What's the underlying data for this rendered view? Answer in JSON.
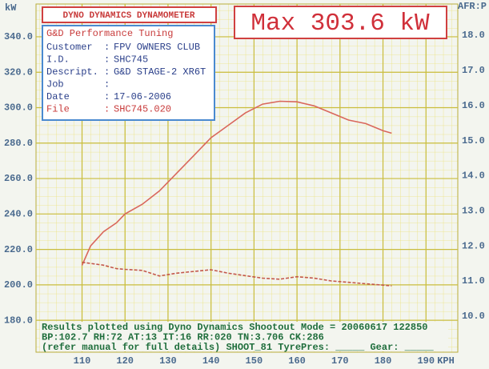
{
  "chart_data": {
    "type": "line",
    "title": "DYNO DYNAMICS DYNAMOMETER",
    "annotation": "Max 303.6 kW",
    "ylabel": "kW",
    "y2label": "AFR:P",
    "xlabel": "KPH",
    "info": {
      "heading": "G&D Performance Tuning",
      "separator": ":",
      "rows": [
        {
          "label": "Customer",
          "value": "FPV OWNERS CLUB"
        },
        {
          "label": "I.D.",
          "value": "SHC745"
        },
        {
          "label": "Descript.",
          "value": "G&D STAGE-2 XR6T"
        },
        {
          "label": "Job"
        },
        {
          "label": "Date",
          "value": "17-06-2006"
        },
        {
          "label": "File",
          "value": "SHC745.020"
        }
      ]
    },
    "footer": [
      "Results plotted using Dyno Dynamics Shootout Mode = 20060617 122850",
      "BP:102.7 RH:72 AT:13 IT:16  RR:020 TN:3.706 CK:286",
      "(refer manual for full details) SHOOT_81 TyrePres: _____ Gear: _____"
    ],
    "x": [
      110,
      112,
      115,
      118,
      120,
      124,
      128,
      132,
      136,
      140,
      144,
      148,
      152,
      156,
      160,
      164,
      168,
      172,
      176,
      180,
      182
    ],
    "series": [
      {
        "color": "#d9675c",
        "values": [
          211,
          222,
          230,
          235,
          240,
          245.5,
          253,
          263,
          273,
          283,
          290,
          297,
          302,
          303.6,
          303.3,
          301,
          297,
          293,
          291,
          287,
          285.6
        ]
      },
      {
        "color": "#c4584a",
        "axis": "y2",
        "dashed": true,
        "values": [
          11.53,
          11.5,
          11.45,
          11.35,
          11.33,
          11.3,
          11.14,
          11.22,
          11.27,
          11.32,
          11.22,
          11.15,
          11.08,
          11.05,
          11.12,
          11.08,
          11.0,
          10.96,
          10.92,
          10.88,
          10.86
        ]
      }
    ],
    "xlim": [
      99.3,
      197.4
    ],
    "xticks": [
      110,
      120,
      130,
      140,
      150,
      160,
      170,
      180,
      190
    ],
    "ylim": [
      162,
      358.5
    ],
    "yticks": [
      {
        "value": 180,
        "label": "180.0"
      },
      {
        "value": 200,
        "label": "200.0"
      },
      {
        "value": 220,
        "label": "220.0"
      },
      {
        "value": 240,
        "label": "240.0"
      },
      {
        "value": 260,
        "label": "260.0"
      },
      {
        "value": 280,
        "label": "280.0"
      },
      {
        "value": 300,
        "label": "300.0"
      },
      {
        "value": 320,
        "label": "320.0"
      },
      {
        "value": 340,
        "label": "340.0"
      }
    ],
    "y2lim": [
      8.97,
      18.89
    ],
    "y2ticks": [
      {
        "value": 10,
        "label": "10.0"
      },
      {
        "value": 11,
        "label": "11.0"
      },
      {
        "value": 12,
        "label": "12.0"
      },
      {
        "value": 13,
        "label": "13.0"
      },
      {
        "value": 14,
        "label": "14.0"
      },
      {
        "value": 15,
        "label": "15.0"
      },
      {
        "value": 16,
        "label": "16.0"
      },
      {
        "value": 17,
        "label": "17.0"
      },
      {
        "value": 18,
        "label": "18.0"
      }
    ],
    "grid": true
  }
}
